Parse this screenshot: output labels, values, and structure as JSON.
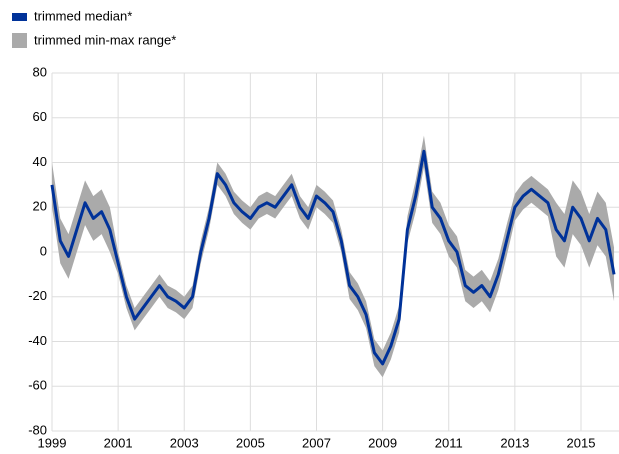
{
  "chart_data": {
    "type": "line",
    "x": [
      1999,
      1999.25,
      1999.5,
      1999.75,
      2000,
      2000.25,
      2000.5,
      2000.75,
      2001,
      2001.25,
      2001.5,
      2001.75,
      2002,
      2002.25,
      2002.5,
      2002.75,
      2003,
      2003.25,
      2003.5,
      2003.75,
      2004,
      2004.25,
      2004.5,
      2004.75,
      2005,
      2005.25,
      2005.5,
      2005.75,
      2006,
      2006.25,
      2006.5,
      2006.75,
      2007,
      2007.25,
      2007.5,
      2007.75,
      2008,
      2008.25,
      2008.5,
      2008.75,
      2009,
      2009.25,
      2009.5,
      2009.75,
      2010,
      2010.25,
      2010.5,
      2010.75,
      2011,
      2011.25,
      2011.5,
      2011.75,
      2012,
      2012.25,
      2012.5,
      2012.75,
      2013,
      2013.25,
      2013.5,
      2013.75,
      2014,
      2014.25,
      2014.5,
      2014.75,
      2015,
      2015.25,
      2015.5,
      2015.75,
      2016
    ],
    "series": [
      {
        "name": "trimmed median*",
        "color": "#003299",
        "values": [
          30,
          5,
          -2,
          10,
          22,
          15,
          18,
          10,
          -5,
          -20,
          -30,
          -25,
          -20,
          -15,
          -20,
          -22,
          -25,
          -20,
          0,
          15,
          35,
          30,
          22,
          18,
          15,
          20,
          22,
          20,
          25,
          30,
          20,
          15,
          25,
          22,
          18,
          5,
          -15,
          -20,
          -28,
          -45,
          -50,
          -42,
          -30,
          10,
          25,
          45,
          20,
          15,
          5,
          0,
          -15,
          -18,
          -15,
          -20,
          -10,
          5,
          20,
          25,
          28,
          25,
          22,
          10,
          5,
          20,
          15,
          5,
          15,
          10,
          -10
        ]
      }
    ],
    "band": {
      "name": "trimmed min-max range*",
      "color": "#aaaaaa",
      "lower": [
        20,
        -5,
        -12,
        0,
        12,
        5,
        8,
        0,
        -10,
        -25,
        -35,
        -30,
        -25,
        -20,
        -25,
        -27,
        -30,
        -25,
        -5,
        10,
        30,
        25,
        17,
        13,
        10,
        15,
        17,
        15,
        20,
        25,
        15,
        10,
        20,
        17,
        13,
        0,
        -21,
        -26,
        -34,
        -51,
        -56,
        -48,
        -36,
        4,
        18,
        38,
        13,
        8,
        -2,
        -7,
        -22,
        -25,
        -22,
        -27,
        -17,
        -2,
        14,
        19,
        22,
        19,
        16,
        -2,
        -7,
        8,
        3,
        -7,
        3,
        -2,
        -22
      ],
      "upper": [
        40,
        15,
        8,
        20,
        32,
        25,
        28,
        20,
        0,
        -15,
        -25,
        -20,
        -15,
        -10,
        -15,
        -17,
        -20,
        -15,
        5,
        20,
        40,
        35,
        27,
        23,
        20,
        25,
        27,
        25,
        30,
        35,
        25,
        20,
        30,
        27,
        23,
        10,
        -9,
        -14,
        -22,
        -39,
        -44,
        -36,
        -24,
        16,
        32,
        52,
        27,
        22,
        12,
        7,
        -8,
        -11,
        -8,
        -13,
        -3,
        12,
        26,
        31,
        34,
        31,
        28,
        22,
        17,
        32,
        27,
        17,
        27,
        22,
        2
      ]
    },
    "xlim": [
      1999,
      2016.15
    ],
    "xticks": [
      1999,
      2001,
      2003,
      2005,
      2007,
      2009,
      2011,
      2013,
      2015
    ],
    "ylim": [
      -80,
      80
    ],
    "yticks": [
      -80,
      -60,
      -40,
      -20,
      0,
      20,
      40,
      60,
      80
    ],
    "grid": true
  }
}
